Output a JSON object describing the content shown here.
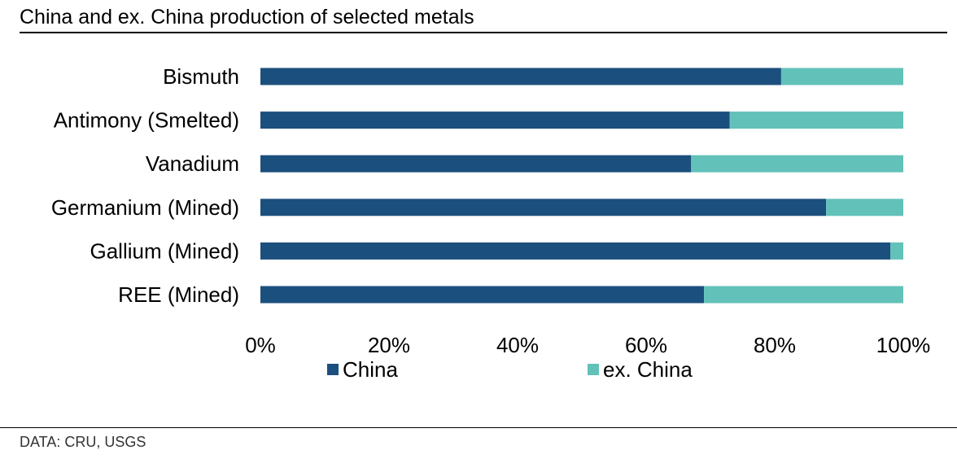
{
  "title": "China and ex. China production of selected metals",
  "source": "DATA: CRU, USGS",
  "colors": {
    "china": "#1b4f7e",
    "ex_china": "#62c1b9"
  },
  "chart_data": {
    "type": "bar",
    "orientation": "horizontal",
    "stacked": true,
    "categories": [
      "Bismuth",
      "Antimony (Smelted)",
      "Vanadium",
      "Germanium (Mined)",
      "Gallium (Mined)",
      "REE (Mined)"
    ],
    "series": [
      {
        "name": "China",
        "values": [
          81,
          73,
          67,
          88,
          98,
          69
        ]
      },
      {
        "name": "ex. China",
        "values": [
          19,
          27,
          33,
          12,
          2,
          31
        ]
      }
    ],
    "xlim": [
      0,
      100
    ],
    "xticks": [
      "0%",
      "20%",
      "40%",
      "60%",
      "80%",
      "100%"
    ],
    "legend_position": "bottom",
    "grid": false
  }
}
